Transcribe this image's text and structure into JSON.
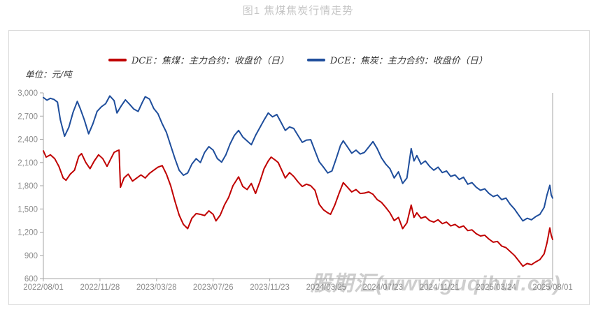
{
  "title": "图1 焦煤焦炭行情走势",
  "unit_label": "单位：元/吨",
  "watermark": "股期汇(www.guqihui.cn)",
  "colors": {
    "coking_coal_line": "#C00000",
    "coke_line": "#1F4E9C",
    "axis": "#a6a6a6",
    "tick_label": "#8c8c8c",
    "title_gray": "#c6c6c6",
    "frame_border": "#d9d9d9"
  },
  "legend": [
    {
      "label": "DCE：焦煤：主力合约：收盘价（日）",
      "color": "#C00000"
    },
    {
      "label": "DCE：焦炭：主力合约：收盘价（日）",
      "color": "#1F4E9C"
    }
  ],
  "chart_data": {
    "type": "line",
    "title": "图1 焦煤焦炭行情走势",
    "xlabel": "",
    "ylabel": "单位：元/吨",
    "ylim": [
      600,
      3000
    ],
    "y_ticks": [
      600,
      900,
      1200,
      1500,
      1800,
      2100,
      2400,
      2700,
      3000
    ],
    "x_tick_labels": [
      "2022/08/01",
      "2022/11/28",
      "2023/03/28",
      "2023/07/26",
      "2023/11/23",
      "2024/03/25",
      "2024/07/23",
      "2024/11/21",
      "2025/03/24",
      "2025/08/01"
    ],
    "x_unit": "months since 2022-08-01",
    "xlim_months": [
      0,
      36
    ],
    "grid": false,
    "legend_position": "top",
    "series": [
      {
        "name": "DCE：焦煤：主力合约：收盘价（日）",
        "color": "#C00000",
        "points": [
          [
            0,
            2250
          ],
          [
            0.2,
            2170
          ],
          [
            0.5,
            2200
          ],
          [
            0.8,
            2150
          ],
          [
            1.1,
            2050
          ],
          [
            1.4,
            1900
          ],
          [
            1.6,
            1870
          ],
          [
            1.9,
            1950
          ],
          [
            2.2,
            2000
          ],
          [
            2.5,
            2180
          ],
          [
            2.7,
            2215
          ],
          [
            3,
            2100
          ],
          [
            3.3,
            2020
          ],
          [
            3.6,
            2120
          ],
          [
            3.9,
            2200
          ],
          [
            4.2,
            2150
          ],
          [
            4.5,
            2050
          ],
          [
            4.8,
            2160
          ],
          [
            5,
            2230
          ],
          [
            5.2,
            2250
          ],
          [
            5.35,
            2260
          ],
          [
            5.45,
            1780
          ],
          [
            5.7,
            1900
          ],
          [
            6,
            1950
          ],
          [
            6.3,
            1860
          ],
          [
            6.6,
            1900
          ],
          [
            6.9,
            1940
          ],
          [
            7.2,
            1900
          ],
          [
            7.5,
            1960
          ],
          [
            7.8,
            2000
          ],
          [
            8.1,
            2040
          ],
          [
            8.4,
            2060
          ],
          [
            8.7,
            1950
          ],
          [
            9,
            1800
          ],
          [
            9.3,
            1600
          ],
          [
            9.6,
            1420
          ],
          [
            9.9,
            1300
          ],
          [
            10.2,
            1245
          ],
          [
            10.5,
            1380
          ],
          [
            10.8,
            1440
          ],
          [
            11.1,
            1430
          ],
          [
            11.4,
            1415
          ],
          [
            11.7,
            1475
          ],
          [
            12,
            1430
          ],
          [
            12.2,
            1345
          ],
          [
            12.5,
            1420
          ],
          [
            12.8,
            1550
          ],
          [
            13.1,
            1650
          ],
          [
            13.4,
            1800
          ],
          [
            13.8,
            1915
          ],
          [
            14.1,
            1790
          ],
          [
            14.4,
            1750
          ],
          [
            14.7,
            1830
          ],
          [
            15,
            1700
          ],
          [
            15.3,
            1850
          ],
          [
            15.6,
            2020
          ],
          [
            15.9,
            2120
          ],
          [
            16.1,
            2170
          ],
          [
            16.4,
            2130
          ],
          [
            16.6,
            2100
          ],
          [
            16.9,
            1980
          ],
          [
            17.1,
            1900
          ],
          [
            17.4,
            1970
          ],
          [
            17.7,
            1920
          ],
          [
            18,
            1850
          ],
          [
            18.3,
            1790
          ],
          [
            18.6,
            1820
          ],
          [
            18.9,
            1800
          ],
          [
            19.2,
            1740
          ],
          [
            19.5,
            1560
          ],
          [
            19.8,
            1490
          ],
          [
            20.1,
            1450
          ],
          [
            20.3,
            1430
          ],
          [
            20.6,
            1550
          ],
          [
            20.9,
            1700
          ],
          [
            21.2,
            1840
          ],
          [
            21.5,
            1780
          ],
          [
            21.8,
            1720
          ],
          [
            22.1,
            1750
          ],
          [
            22.4,
            1700
          ],
          [
            22.7,
            1705
          ],
          [
            23,
            1720
          ],
          [
            23.3,
            1690
          ],
          [
            23.6,
            1620
          ],
          [
            23.9,
            1585
          ],
          [
            24.2,
            1520
          ],
          [
            24.5,
            1450
          ],
          [
            24.8,
            1350
          ],
          [
            25.1,
            1390
          ],
          [
            25.4,
            1245
          ],
          [
            25.7,
            1320
          ],
          [
            26,
            1550
          ],
          [
            26.2,
            1390
          ],
          [
            26.4,
            1450
          ],
          [
            26.7,
            1380
          ],
          [
            27,
            1400
          ],
          [
            27.3,
            1350
          ],
          [
            27.6,
            1330
          ],
          [
            27.9,
            1360
          ],
          [
            28.2,
            1310
          ],
          [
            28.5,
            1330
          ],
          [
            28.8,
            1280
          ],
          [
            29.1,
            1300
          ],
          [
            29.4,
            1260
          ],
          [
            29.7,
            1280
          ],
          [
            30,
            1220
          ],
          [
            30.3,
            1230
          ],
          [
            30.6,
            1180
          ],
          [
            30.9,
            1150
          ],
          [
            31.2,
            1160
          ],
          [
            31.5,
            1110
          ],
          [
            31.8,
            1070
          ],
          [
            32.1,
            1080
          ],
          [
            32.4,
            1020
          ],
          [
            32.7,
            1000
          ],
          [
            33,
            950
          ],
          [
            33.3,
            900
          ],
          [
            33.6,
            830
          ],
          [
            33.9,
            760
          ],
          [
            34.2,
            795
          ],
          [
            34.5,
            780
          ],
          [
            34.8,
            815
          ],
          [
            35.1,
            845
          ],
          [
            35.4,
            920
          ],
          [
            35.6,
            1060
          ],
          [
            35.8,
            1255
          ],
          [
            35.9,
            1160
          ],
          [
            36,
            1105
          ]
        ]
      },
      {
        "name": "DCE：焦炭：主力合约：收盘价（日）",
        "color": "#1F4E9C",
        "points": [
          [
            0,
            2940
          ],
          [
            0.25,
            2905
          ],
          [
            0.5,
            2930
          ],
          [
            0.75,
            2915
          ],
          [
            1,
            2880
          ],
          [
            1.2,
            2650
          ],
          [
            1.5,
            2440
          ],
          [
            1.8,
            2555
          ],
          [
            2.1,
            2750
          ],
          [
            2.4,
            2890
          ],
          [
            2.6,
            2800
          ],
          [
            2.9,
            2650
          ],
          [
            3.2,
            2470
          ],
          [
            3.5,
            2600
          ],
          [
            3.8,
            2760
          ],
          [
            4.1,
            2820
          ],
          [
            4.4,
            2860
          ],
          [
            4.7,
            2960
          ],
          [
            5,
            2900
          ],
          [
            5.2,
            2740
          ],
          [
            5.5,
            2830
          ],
          [
            5.8,
            2910
          ],
          [
            6.1,
            2850
          ],
          [
            6.4,
            2790
          ],
          [
            6.7,
            2760
          ],
          [
            7,
            2880
          ],
          [
            7.2,
            2950
          ],
          [
            7.5,
            2920
          ],
          [
            7.8,
            2800
          ],
          [
            8.1,
            2730
          ],
          [
            8.4,
            2600
          ],
          [
            8.7,
            2490
          ],
          [
            9,
            2320
          ],
          [
            9.3,
            2150
          ],
          [
            9.6,
            2000
          ],
          [
            9.9,
            1935
          ],
          [
            10.2,
            1965
          ],
          [
            10.5,
            2080
          ],
          [
            10.8,
            2150
          ],
          [
            11.1,
            2100
          ],
          [
            11.4,
            2230
          ],
          [
            11.7,
            2305
          ],
          [
            12,
            2260
          ],
          [
            12.3,
            2150
          ],
          [
            12.6,
            2105
          ],
          [
            12.9,
            2200
          ],
          [
            13.2,
            2340
          ],
          [
            13.5,
            2450
          ],
          [
            13.8,
            2515
          ],
          [
            14.1,
            2430
          ],
          [
            14.4,
            2380
          ],
          [
            14.7,
            2330
          ],
          [
            15,
            2450
          ],
          [
            15.3,
            2550
          ],
          [
            15.6,
            2650
          ],
          [
            15.9,
            2740
          ],
          [
            16.2,
            2690
          ],
          [
            16.5,
            2720
          ],
          [
            16.8,
            2620
          ],
          [
            17.1,
            2515
          ],
          [
            17.4,
            2560
          ],
          [
            17.7,
            2540
          ],
          [
            18,
            2450
          ],
          [
            18.3,
            2360
          ],
          [
            18.6,
            2390
          ],
          [
            18.9,
            2395
          ],
          [
            19.2,
            2250
          ],
          [
            19.5,
            2110
          ],
          [
            19.8,
            2040
          ],
          [
            20.1,
            1965
          ],
          [
            20.4,
            1990
          ],
          [
            20.7,
            2150
          ],
          [
            21,
            2320
          ],
          [
            21.2,
            2380
          ],
          [
            21.5,
            2300
          ],
          [
            21.8,
            2220
          ],
          [
            22.1,
            2260
          ],
          [
            22.4,
            2210
          ],
          [
            22.7,
            2230
          ],
          [
            23,
            2300
          ],
          [
            23.3,
            2370
          ],
          [
            23.6,
            2280
          ],
          [
            23.9,
            2160
          ],
          [
            24.2,
            2080
          ],
          [
            24.5,
            2020
          ],
          [
            24.8,
            1900
          ],
          [
            25.1,
            1980
          ],
          [
            25.4,
            1830
          ],
          [
            25.7,
            1900
          ],
          [
            26,
            2280
          ],
          [
            26.2,
            2120
          ],
          [
            26.4,
            2190
          ],
          [
            26.7,
            2080
          ],
          [
            27,
            2120
          ],
          [
            27.3,
            2050
          ],
          [
            27.6,
            2000
          ],
          [
            27.9,
            2040
          ],
          [
            28.2,
            1970
          ],
          [
            28.5,
            1990
          ],
          [
            28.8,
            1920
          ],
          [
            29.1,
            1940
          ],
          [
            29.4,
            1880
          ],
          [
            29.7,
            1910
          ],
          [
            30,
            1820
          ],
          [
            30.3,
            1840
          ],
          [
            30.6,
            1780
          ],
          [
            30.9,
            1740
          ],
          [
            31.2,
            1760
          ],
          [
            31.5,
            1700
          ],
          [
            31.8,
            1660
          ],
          [
            32.1,
            1680
          ],
          [
            32.4,
            1620
          ],
          [
            32.7,
            1640
          ],
          [
            33,
            1560
          ],
          [
            33.3,
            1500
          ],
          [
            33.6,
            1420
          ],
          [
            33.9,
            1345
          ],
          [
            34.2,
            1380
          ],
          [
            34.5,
            1360
          ],
          [
            34.8,
            1400
          ],
          [
            35.1,
            1430
          ],
          [
            35.4,
            1520
          ],
          [
            35.6,
            1680
          ],
          [
            35.8,
            1805
          ],
          [
            35.9,
            1680
          ],
          [
            36,
            1640
          ]
        ]
      }
    ]
  }
}
